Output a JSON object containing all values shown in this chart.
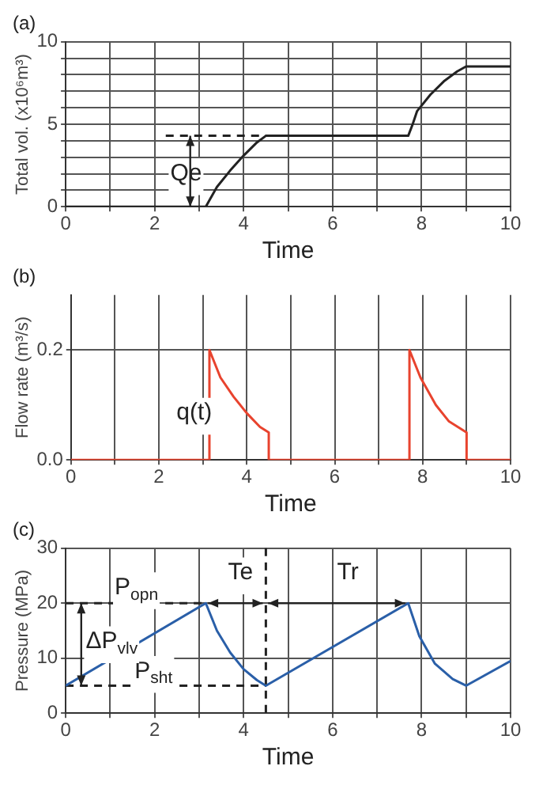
{
  "chart_data": [
    {
      "type": "line",
      "title": "(a)",
      "xlabel": "Time",
      "ylabel": "Total vol. (x10⁶m³)",
      "xlim": [
        0,
        10
      ],
      "ylim": [
        0,
        10
      ],
      "xticks": [
        0,
        {
          "value": 1,
          "label": null
        },
        2,
        {
          "value": 3,
          "label": null
        },
        4,
        {
          "value": 5,
          "label": null
        },
        6,
        {
          "value": 7,
          "label": null
        },
        8,
        {
          "value": 9,
          "label": null
        },
        10
      ],
      "yticks": [
        0,
        {
          "value": 1,
          "label": null
        },
        {
          "value": 2,
          "label": null
        },
        {
          "value": 3,
          "label": null
        },
        {
          "value": 4,
          "label": null
        },
        5,
        {
          "value": 6,
          "label": null
        },
        {
          "value": 7,
          "label": null
        },
        {
          "value": 8,
          "label": null
        },
        {
          "value": 9,
          "label": null
        },
        10
      ],
      "grid": true,
      "marker": "none",
      "legend": false,
      "series": [
        {
          "color": "#222222",
          "x": [
            0,
            3.15,
            3.4,
            3.7,
            4.0,
            4.3,
            4.5,
            7.7,
            7.8,
            7.9,
            8.2,
            8.5,
            8.8,
            9.0,
            10
          ],
          "values": [
            0,
            0,
            1.2,
            2.2,
            3.1,
            3.9,
            4.3,
            4.3,
            5.0,
            5.8,
            6.8,
            7.6,
            8.2,
            8.5,
            8.5
          ]
        },
        {
          "color": "#222222",
          "line_style": "dashed",
          "x": [
            2.25,
            4.5
          ],
          "values": [
            4.3,
            4.3
          ]
        }
      ],
      "annotations": [
        "Qe"
      ]
    },
    {
      "type": "line",
      "title": "(b)",
      "xlabel": "Time",
      "ylabel": "Flow rate (m³/s)",
      "xlim": [
        0,
        10
      ],
      "ylim": [
        0,
        0.3
      ],
      "xticks": [
        0,
        {
          "value": 1,
          "label": null
        },
        2,
        {
          "value": 3,
          "label": null
        },
        4,
        {
          "value": 5,
          "label": null
        },
        6,
        {
          "value": 7,
          "label": null
        },
        8,
        {
          "value": 9,
          "label": null
        },
        10
      ],
      "yticks": [
        {
          "value": 0,
          "label": "0.0"
        },
        0.2
      ],
      "grid": true,
      "marker": "none",
      "legend": false,
      "series": [
        {
          "color": "#e8432e",
          "x": [
            0,
            3.15,
            3.15,
            3.4,
            3.7,
            4.0,
            4.3,
            4.5,
            4.5,
            7.7,
            7.7,
            7.95,
            8.3,
            8.6,
            9.0,
            9.0,
            10
          ],
          "values": [
            0,
            0,
            0.2,
            0.15,
            0.115,
            0.085,
            0.06,
            0.05,
            0,
            0,
            0.2,
            0.15,
            0.1,
            0.07,
            0.05,
            0,
            0
          ]
        }
      ],
      "annotations": [
        "q(t)"
      ]
    },
    {
      "type": "line",
      "title": "(c)",
      "xlabel": "Time",
      "ylabel": "Pressure (MPa)",
      "xlim": [
        0,
        10
      ],
      "ylim": [
        0,
        30
      ],
      "xticks": [
        0,
        {
          "value": 1,
          "label": null
        },
        2,
        {
          "value": 3,
          "label": null
        },
        4,
        {
          "value": 5,
          "label": null
        },
        6,
        {
          "value": 7,
          "label": null
        },
        8,
        {
          "value": 9,
          "label": null
        },
        10
      ],
      "yticks": [
        0,
        10,
        20,
        30
      ],
      "grid": true,
      "marker": "none",
      "legend": false,
      "series": [
        {
          "color": "#2a5fa8",
          "x": [
            0,
            3.15,
            3.4,
            3.7,
            4.0,
            4.3,
            4.5,
            7.7,
            7.95,
            8.3,
            8.7,
            9.0,
            10
          ],
          "values": [
            5,
            20,
            15,
            11,
            8,
            6,
            5,
            20,
            14,
            9,
            6.2,
            5,
            9.5
          ]
        },
        {
          "color": "#222222",
          "line_style": "dashed",
          "x": [
            0,
            3.15
          ],
          "values": [
            20,
            20
          ]
        },
        {
          "color": "#222222",
          "line_style": "dashed",
          "x": [
            0,
            4.5
          ],
          "values": [
            5,
            5
          ]
        }
      ],
      "ref_lines": [
        {
          "axis": "x",
          "value": 4.5,
          "color": "#222222",
          "line_style": "dashed"
        }
      ],
      "annotations": [
        "P$_{opn}$",
        "P$_{sht}$",
        "ΔP$_{vlv}$",
        {
          "text": "Te",
          "x": 4.5,
          "y": 20
        },
        {
          "text": "Tr",
          "x": 7.7,
          "y": 20
        }
      ]
    }
  ]
}
